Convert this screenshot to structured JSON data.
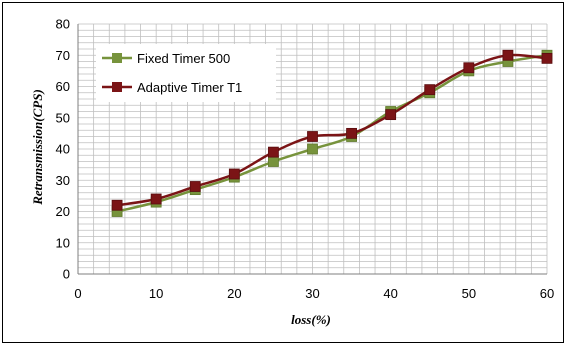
{
  "chart_data": {
    "type": "line",
    "xlabel": "loss(%)",
    "ylabel": "Retransmission(CPS)",
    "xlim": [
      0,
      60
    ],
    "ylim": [
      0,
      80
    ],
    "x_ticks": [
      "0",
      "10",
      "20",
      "30",
      "40",
      "50",
      "60"
    ],
    "y_ticks": [
      "0",
      "10",
      "20",
      "30",
      "40",
      "50",
      "60",
      "70",
      "80"
    ],
    "grid": true,
    "legend_position": "top-left",
    "x": [
      5,
      10,
      15,
      20,
      25,
      30,
      35,
      40,
      45,
      50,
      55,
      60
    ],
    "series": [
      {
        "name": "Fixed Timer 500",
        "color": "#77933c",
        "values": [
          20,
          23,
          27,
          31,
          36,
          40,
          44,
          52,
          58,
          65,
          68,
          70
        ]
      },
      {
        "name": "Adaptive Timer T1",
        "color": "#7b1416",
        "values": [
          22,
          24,
          28,
          32,
          39,
          44,
          45,
          51,
          59,
          66,
          70,
          69
        ]
      }
    ]
  }
}
